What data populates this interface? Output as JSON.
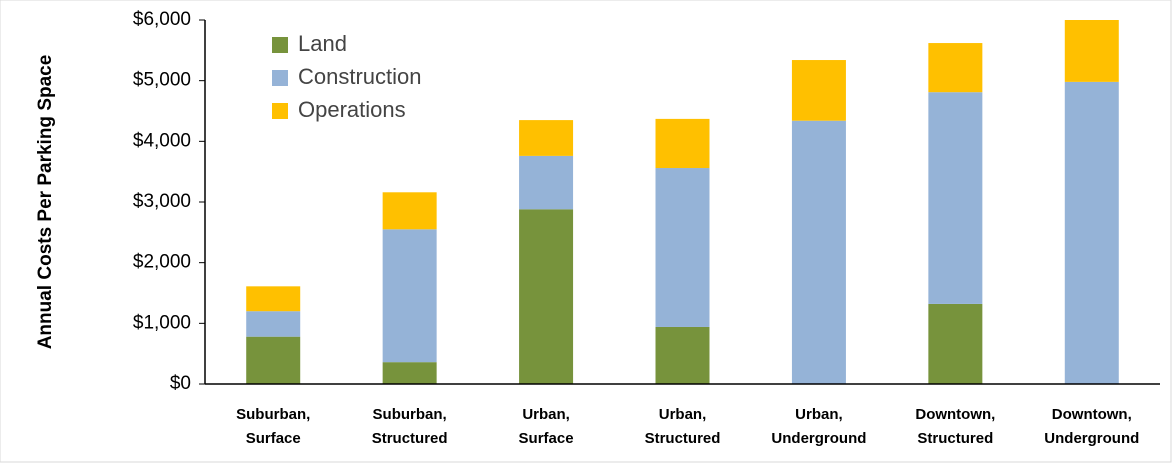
{
  "chart_data": {
    "type": "stacked_bar",
    "y_label": "Annual Costs Per Parking Space",
    "categories": [
      "Suburban, Surface",
      "Suburban, Structured",
      "Urban, Surface",
      "Urban, Structured",
      "Urban, Underground",
      "Downtown, Structured",
      "Downtown, Underground"
    ],
    "series": [
      {
        "name": "Land",
        "color": "#77933c",
        "values": [
          780,
          360,
          2880,
          940,
          0,
          1320,
          0
        ]
      },
      {
        "name": "Construction",
        "color": "#95b3d7",
        "values": [
          420,
          2190,
          880,
          2620,
          4340,
          3490,
          4980
        ]
      },
      {
        "name": "Operations",
        "color": "#ffc000",
        "values": [
          410,
          610,
          590,
          810,
          1000,
          810,
          1020
        ]
      }
    ],
    "ylim": [
      0,
      6000
    ],
    "yticks": [
      {
        "value": 0,
        "label": "$0"
      },
      {
        "value": 1000,
        "label": "$1,000"
      },
      {
        "value": 2000,
        "label": "$2,000"
      },
      {
        "value": 3000,
        "label": "$3,000"
      },
      {
        "value": 4000,
        "label": "$4,000"
      },
      {
        "value": 5000,
        "label": "$5,000"
      },
      {
        "value": 6000,
        "label": "$6,000"
      }
    ],
    "legend": "top-left"
  }
}
